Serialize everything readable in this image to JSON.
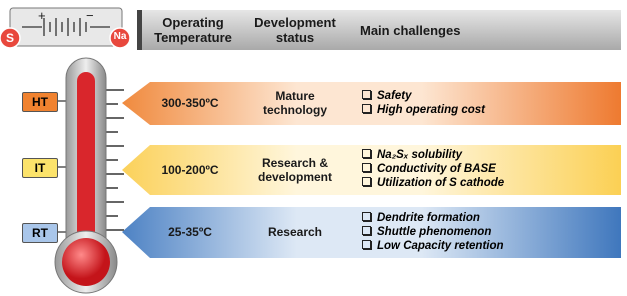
{
  "battery": {
    "left": "S",
    "right": "Na",
    "plus": "+",
    "minus": "−"
  },
  "header": {
    "col1": "Operating Temperature",
    "col2": "Development status",
    "col3": "Main challenges"
  },
  "rows": [
    {
      "label": "HT",
      "temperature": "300-350ºC",
      "status": "Mature technology",
      "challenges": [
        "Safety",
        "High operating cost"
      ]
    },
    {
      "label": "IT",
      "temperature": "100-200ºC",
      "status": "Research & development",
      "challenges": [
        "Na₂Sₓ solubility",
        "Conductivity of BASE",
        "Utilization of S cathode"
      ]
    },
    {
      "label": "RT",
      "temperature": "25-35ºC",
      "status": "Research",
      "challenges": [
        "Dendrite formation",
        "Shuttle phenomenon",
        "Low Capacity retention"
      ]
    }
  ]
}
